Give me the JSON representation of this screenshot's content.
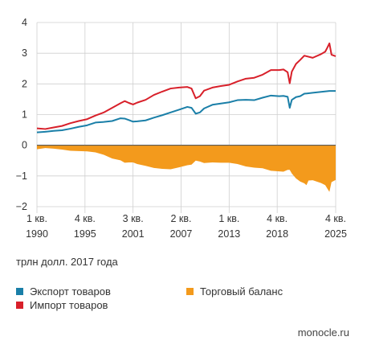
{
  "chart_data": {
    "type": "line",
    "ylim": [
      -2,
      4
    ],
    "yticks": [
      -2,
      -1,
      0,
      1,
      2,
      3,
      4
    ],
    "xlim": [
      1990.0,
      2025.75
    ],
    "xticks": [
      {
        "q": "1 кв.",
        "y": "1990",
        "x": 1990.0
      },
      {
        "q": "4 кв.",
        "y": "1995",
        "x": 1995.75
      },
      {
        "q": "3 кв.",
        "y": "2001",
        "x": 2001.5
      },
      {
        "q": "2 кв.",
        "y": "2007",
        "x": 2007.25
      },
      {
        "q": "1 кв.",
        "y": "2013",
        "x": 2013.0
      },
      {
        "q": "4 кв.",
        "y": "2018",
        "x": 2018.75
      },
      {
        "q": "4 кв.",
        "y": "2025",
        "x": 2025.75
      }
    ],
    "unit_label": "трлн долл. 2017 года",
    "series": [
      {
        "name": "Экспорт товаров",
        "kind": "line",
        "color": "#1a7fa8",
        "points": [
          [
            1990.0,
            0.42
          ],
          [
            1991.0,
            0.44
          ],
          [
            1992.0,
            0.47
          ],
          [
            1993.0,
            0.49
          ],
          [
            1994.0,
            0.54
          ],
          [
            1995.0,
            0.6
          ],
          [
            1996.0,
            0.65
          ],
          [
            1997.0,
            0.74
          ],
          [
            1998.0,
            0.76
          ],
          [
            1999.0,
            0.79
          ],
          [
            2000.0,
            0.88
          ],
          [
            2000.5,
            0.87
          ],
          [
            2001.0,
            0.82
          ],
          [
            2001.5,
            0.77
          ],
          [
            2002.0,
            0.78
          ],
          [
            2003.0,
            0.81
          ],
          [
            2004.0,
            0.9
          ],
          [
            2005.0,
            0.98
          ],
          [
            2006.0,
            1.07
          ],
          [
            2007.0,
            1.16
          ],
          [
            2008.0,
            1.25
          ],
          [
            2008.5,
            1.22
          ],
          [
            2009.0,
            1.03
          ],
          [
            2009.5,
            1.07
          ],
          [
            2010.0,
            1.2
          ],
          [
            2011.0,
            1.32
          ],
          [
            2012.0,
            1.36
          ],
          [
            2013.0,
            1.4
          ],
          [
            2014.0,
            1.47
          ],
          [
            2015.0,
            1.48
          ],
          [
            2016.0,
            1.47
          ],
          [
            2017.0,
            1.55
          ],
          [
            2018.0,
            1.62
          ],
          [
            2019.0,
            1.6
          ],
          [
            2019.5,
            1.61
          ],
          [
            2020.0,
            1.58
          ],
          [
            2020.25,
            1.22
          ],
          [
            2020.5,
            1.48
          ],
          [
            2021.0,
            1.57
          ],
          [
            2021.5,
            1.6
          ],
          [
            2022.0,
            1.68
          ],
          [
            2023.0,
            1.71
          ],
          [
            2024.0,
            1.74
          ],
          [
            2025.0,
            1.77
          ],
          [
            2025.75,
            1.77
          ]
        ]
      },
      {
        "name": "Импорт товаров",
        "kind": "line",
        "color": "#d8202a",
        "points": [
          [
            1990.0,
            0.55
          ],
          [
            1991.0,
            0.53
          ],
          [
            1992.0,
            0.58
          ],
          [
            1993.0,
            0.63
          ],
          [
            1994.0,
            0.72
          ],
          [
            1995.0,
            0.79
          ],
          [
            1996.0,
            0.85
          ],
          [
            1997.0,
            0.97
          ],
          [
            1998.0,
            1.07
          ],
          [
            1999.0,
            1.22
          ],
          [
            2000.0,
            1.37
          ],
          [
            2000.5,
            1.44
          ],
          [
            2001.0,
            1.38
          ],
          [
            2001.5,
            1.33
          ],
          [
            2002.0,
            1.39
          ],
          [
            2003.0,
            1.48
          ],
          [
            2004.0,
            1.64
          ],
          [
            2005.0,
            1.75
          ],
          [
            2006.0,
            1.85
          ],
          [
            2007.0,
            1.88
          ],
          [
            2008.0,
            1.9
          ],
          [
            2008.5,
            1.85
          ],
          [
            2009.0,
            1.53
          ],
          [
            2009.5,
            1.6
          ],
          [
            2010.0,
            1.78
          ],
          [
            2011.0,
            1.88
          ],
          [
            2012.0,
            1.93
          ],
          [
            2013.0,
            1.97
          ],
          [
            2014.0,
            2.08
          ],
          [
            2015.0,
            2.17
          ],
          [
            2016.0,
            2.2
          ],
          [
            2017.0,
            2.3
          ],
          [
            2018.0,
            2.45
          ],
          [
            2019.0,
            2.45
          ],
          [
            2019.5,
            2.47
          ],
          [
            2020.0,
            2.38
          ],
          [
            2020.25,
            2.02
          ],
          [
            2020.5,
            2.4
          ],
          [
            2021.0,
            2.65
          ],
          [
            2021.5,
            2.78
          ],
          [
            2022.0,
            2.92
          ],
          [
            2023.0,
            2.85
          ],
          [
            2024.0,
            2.97
          ],
          [
            2024.5,
            3.05
          ],
          [
            2024.75,
            3.18
          ],
          [
            2025.0,
            3.32
          ],
          [
            2025.25,
            2.95
          ],
          [
            2025.75,
            2.9
          ]
        ]
      },
      {
        "name": "Торговый баланс",
        "kind": "area",
        "color": "#f39a1c",
        "points": [
          [
            1990.0,
            -0.13
          ],
          [
            1991.0,
            -0.09
          ],
          [
            1992.0,
            -0.11
          ],
          [
            1993.0,
            -0.14
          ],
          [
            1994.0,
            -0.18
          ],
          [
            1995.0,
            -0.19
          ],
          [
            1996.0,
            -0.2
          ],
          [
            1997.0,
            -0.23
          ],
          [
            1998.0,
            -0.31
          ],
          [
            1999.0,
            -0.43
          ],
          [
            2000.0,
            -0.49
          ],
          [
            2000.5,
            -0.57
          ],
          [
            2001.0,
            -0.56
          ],
          [
            2001.5,
            -0.56
          ],
          [
            2002.0,
            -0.61
          ],
          [
            2003.0,
            -0.67
          ],
          [
            2004.0,
            -0.74
          ],
          [
            2005.0,
            -0.77
          ],
          [
            2006.0,
            -0.78
          ],
          [
            2007.0,
            -0.72
          ],
          [
            2008.0,
            -0.65
          ],
          [
            2008.5,
            -0.63
          ],
          [
            2009.0,
            -0.5
          ],
          [
            2009.5,
            -0.53
          ],
          [
            2010.0,
            -0.58
          ],
          [
            2011.0,
            -0.56
          ],
          [
            2012.0,
            -0.57
          ],
          [
            2013.0,
            -0.57
          ],
          [
            2014.0,
            -0.61
          ],
          [
            2015.0,
            -0.69
          ],
          [
            2016.0,
            -0.73
          ],
          [
            2017.0,
            -0.75
          ],
          [
            2018.0,
            -0.83
          ],
          [
            2019.0,
            -0.85
          ],
          [
            2019.5,
            -0.86
          ],
          [
            2020.0,
            -0.8
          ],
          [
            2020.25,
            -0.8
          ],
          [
            2020.5,
            -0.92
          ],
          [
            2021.0,
            -1.08
          ],
          [
            2021.5,
            -1.18
          ],
          [
            2022.0,
            -1.24
          ],
          [
            2022.25,
            -1.3
          ],
          [
            2022.5,
            -1.15
          ],
          [
            2023.0,
            -1.14
          ],
          [
            2024.0,
            -1.23
          ],
          [
            2024.5,
            -1.3
          ],
          [
            2024.75,
            -1.41
          ],
          [
            2025.0,
            -1.52
          ],
          [
            2025.25,
            -1.2
          ],
          [
            2025.75,
            -1.13
          ]
        ]
      }
    ],
    "legend": [
      {
        "label": "Экспорт товаров",
        "color": "#1a7fa8"
      },
      {
        "label": "Импорт товаров",
        "color": "#d8202a"
      },
      {
        "label": "Торговый баланс",
        "color": "#f39a1c"
      }
    ]
  },
  "footer": {
    "brand": "monocle.ru"
  }
}
